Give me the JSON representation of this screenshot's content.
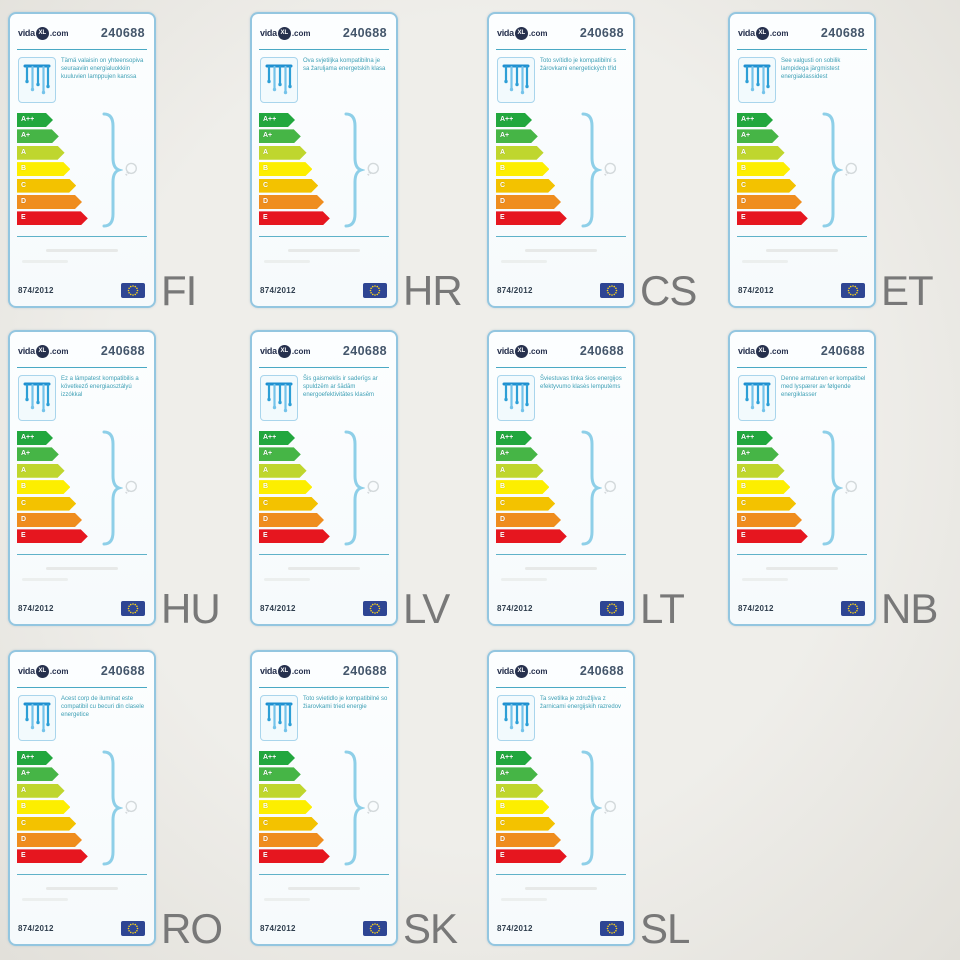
{
  "shared": {
    "brand": {
      "prefix": "vida",
      "badge": "XL",
      "suffix": ".com"
    },
    "product_number": "240688",
    "regulation": "874/2012",
    "icons": {
      "pictogram": "pendant-lamp-icon",
      "brace": "curly-brace-icon",
      "bulb": "bulb-outline-icon",
      "flag": "eu-flag-icon"
    },
    "colors": {
      "card_border": "#93c6e0",
      "divider_teal": "#4aa9c4",
      "description_text": "#3fa0b5",
      "brace_blue": "#8ecfe8",
      "eu_flag_blue": "#2e4593",
      "eu_star_yellow": "#ffd617",
      "language_code_gray": "#787878"
    }
  },
  "energy_classes": [
    {
      "label": "A++",
      "color": "#22a73e"
    },
    {
      "label": "A+",
      "color": "#46b546"
    },
    {
      "label": "A",
      "color": "#bfd62e"
    },
    {
      "label": "B",
      "color": "#fdee00"
    },
    {
      "label": "C",
      "color": "#f3c200"
    },
    {
      "label": "D",
      "color": "#ef8d1e"
    },
    {
      "label": "E",
      "color": "#e6161f"
    }
  ],
  "labels": [
    {
      "lang": "FI",
      "description": "Tämä valaisin on yhteensopiva seuraaviin energialuokkiin kuuluvien lamppujen kanssa"
    },
    {
      "lang": "HR",
      "description": "Ova svjetiljka kompatibilna je sa žaruljama energetskih klasa"
    },
    {
      "lang": "CS",
      "description": "Toto svítidlo je kompatibilní s žárovkami energetických tříd"
    },
    {
      "lang": "ET",
      "description": "See valgusti on sobilik lampidega järgmistest energiaklassidest"
    },
    {
      "lang": "HU",
      "description": "Ez a lámpatest kompatibilis a következő energiaosztályú izzókkal"
    },
    {
      "lang": "LV",
      "description": "Šis gaismeklis ir saderīgs ar spuldzēm ar šādām energoefektivitātes klasēm"
    },
    {
      "lang": "LT",
      "description": "Šviestuvas tinka šios energijos efektyvumo klasės lemputėms"
    },
    {
      "lang": "NB",
      "description": "Denne armaturen er kompatibel med lyspærer av følgende energiklasser"
    },
    {
      "lang": "RO",
      "description": "Acest corp de iluminat este compatibil cu becuri din clasele energetice"
    },
    {
      "lang": "SK",
      "description": "Toto svietidlo je kompatibilné so žiarovkami tried energie"
    },
    {
      "lang": "SL",
      "description": "Ta svetilka je združljiva z žarnicami energijskih razredov"
    }
  ]
}
